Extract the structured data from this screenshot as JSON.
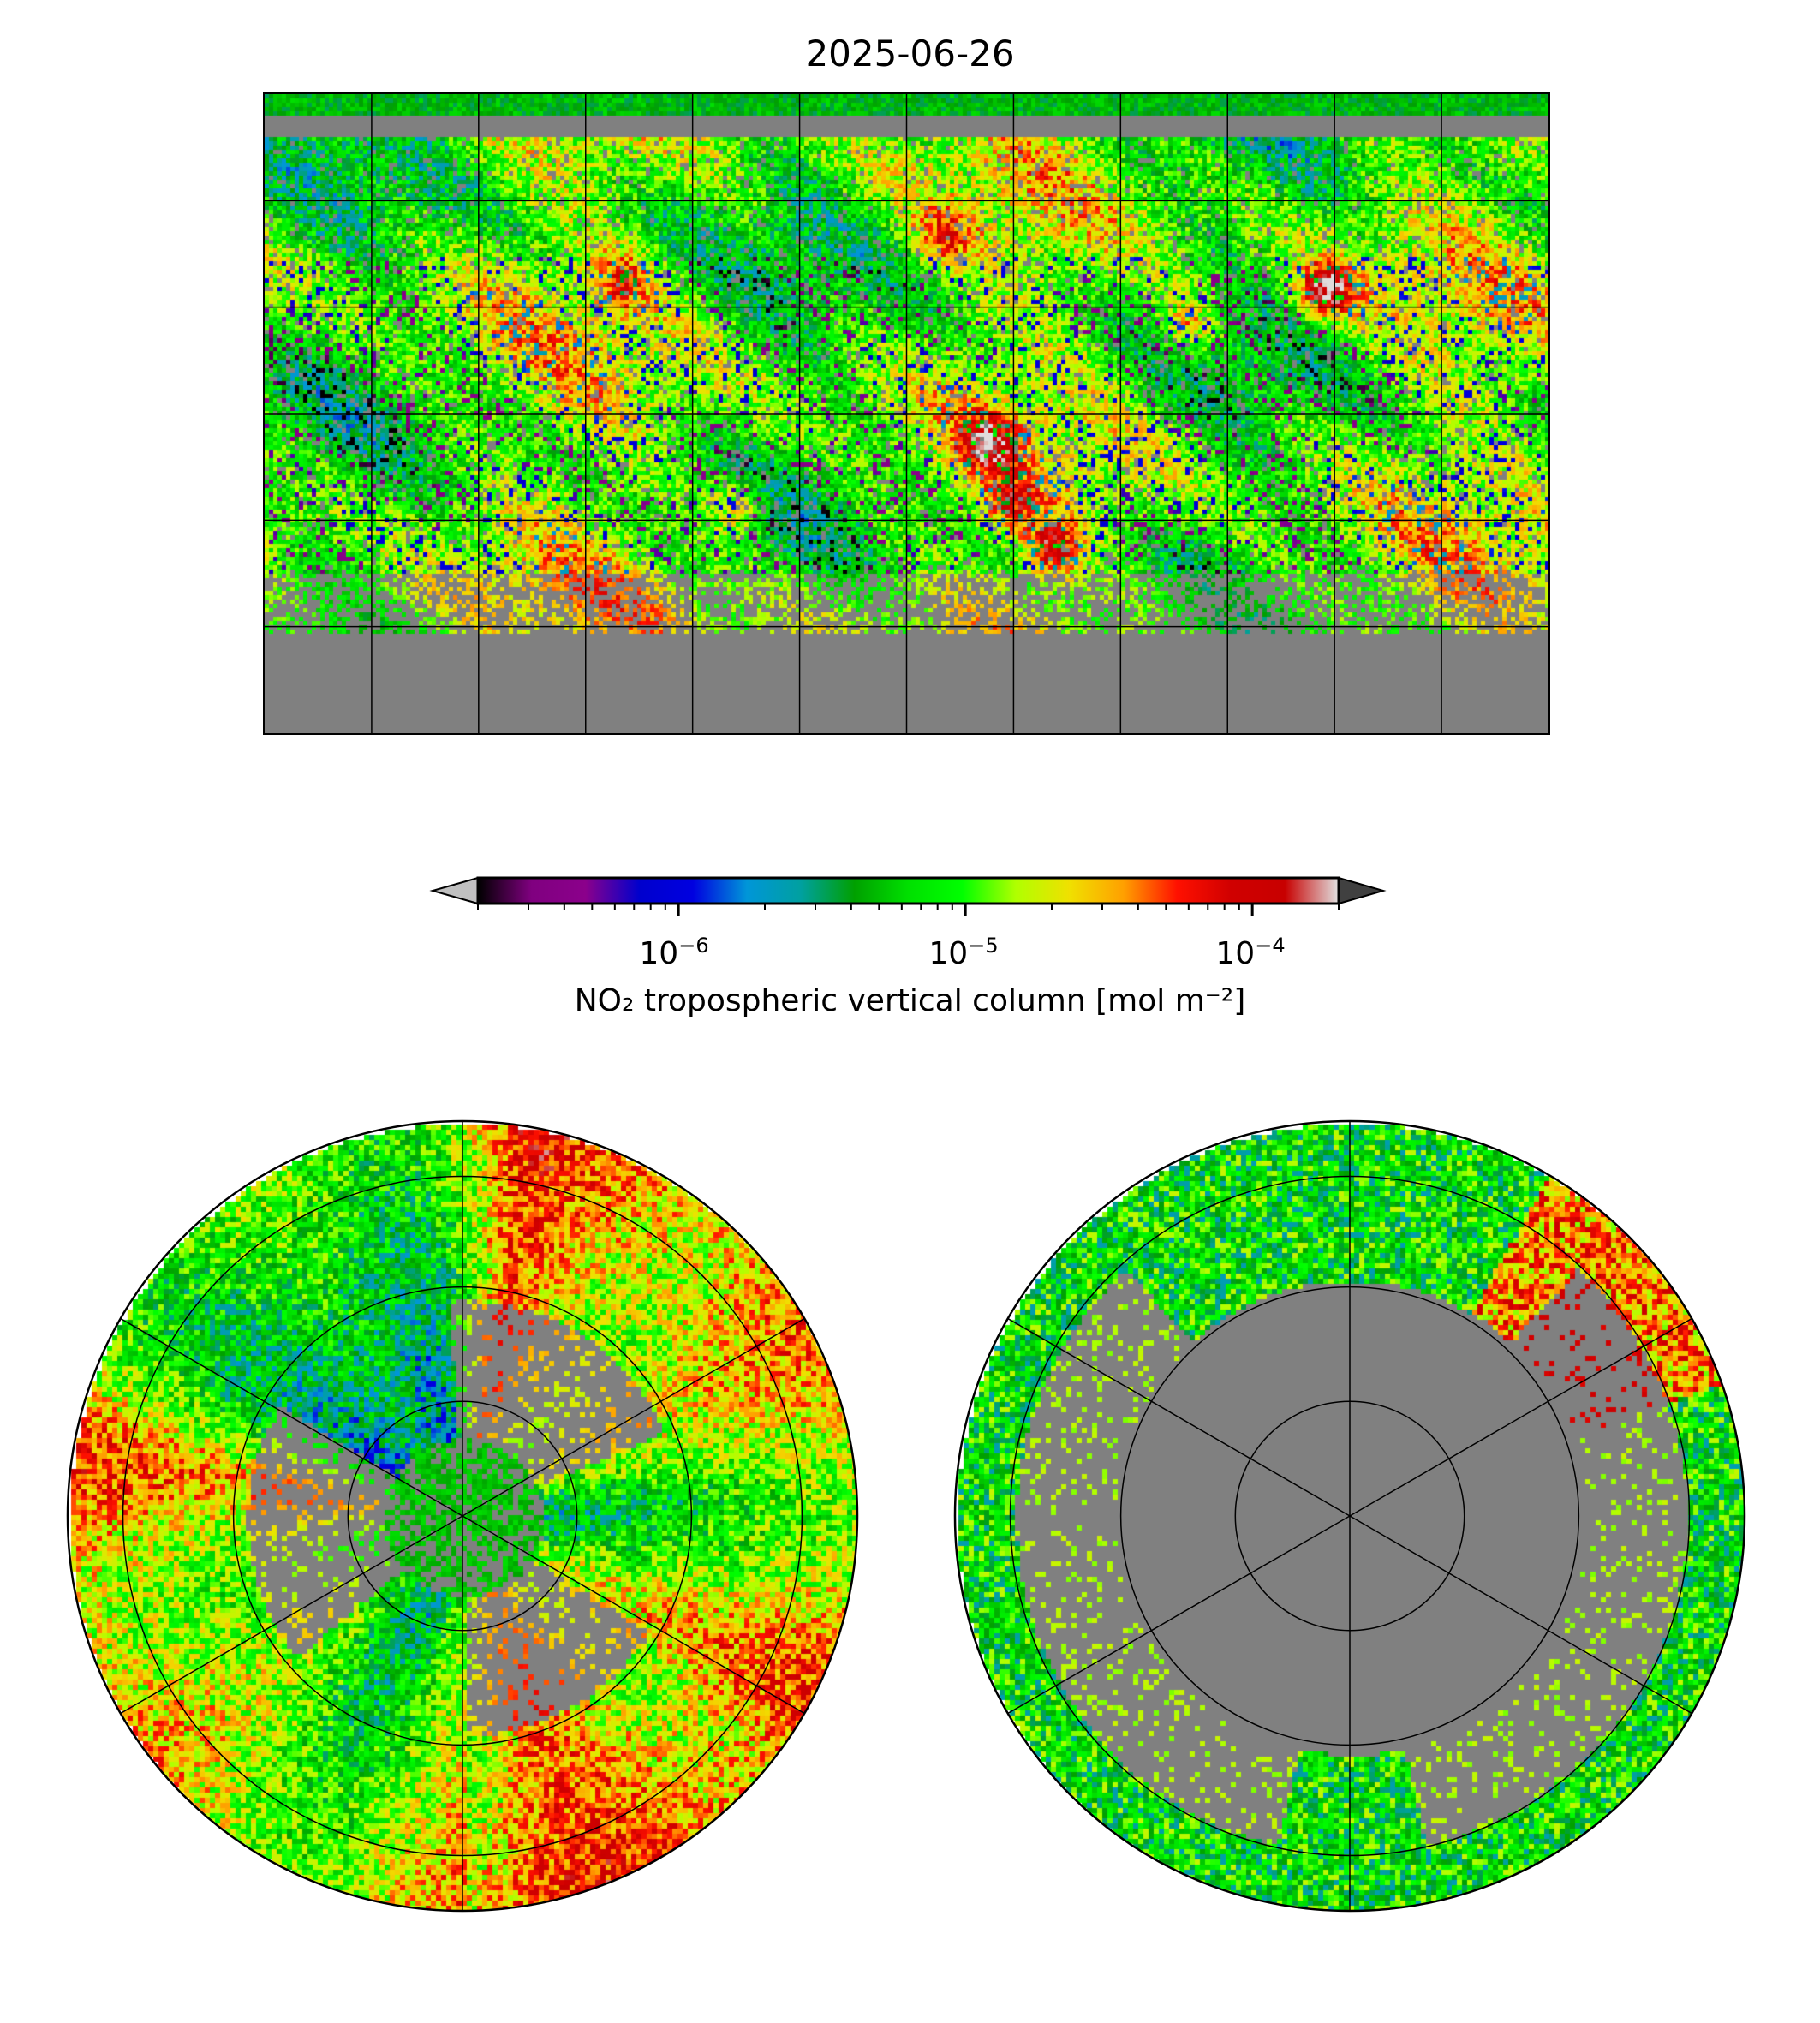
{
  "title": "2025-06-26",
  "colorbar": {
    "label": "NO₂ tropospheric vertical column [mol m⁻²]",
    "scale": "log",
    "range": [
      2e-07,
      0.0002
    ],
    "ticks": [
      {
        "base": "10",
        "exp": "−6",
        "value": 1e-06
      },
      {
        "base": "10",
        "exp": "−5",
        "value": 1e-05
      },
      {
        "base": "10",
        "exp": "−4",
        "value": 0.0001
      }
    ],
    "under_color": "#c0c0c0",
    "over_color": "#404040",
    "colors": [
      "#000000",
      "#800080",
      "#8b008b",
      "#0000cd",
      "#0000e0",
      "#0096d8",
      "#00a0a0",
      "#00a000",
      "#00e000",
      "#00ff00",
      "#b0ff00",
      "#f0e000",
      "#ffa000",
      "#ff1000",
      "#d00000",
      "#c80000",
      "#e0e0e0"
    ]
  },
  "maps": {
    "global": {
      "projection": "PlateCarree",
      "gridline_spacing_deg": 30
    },
    "north": {
      "projection": "NorthPolarStereo"
    },
    "south": {
      "projection": "SouthPolarStereo"
    },
    "missing_color": "#808080"
  }
}
